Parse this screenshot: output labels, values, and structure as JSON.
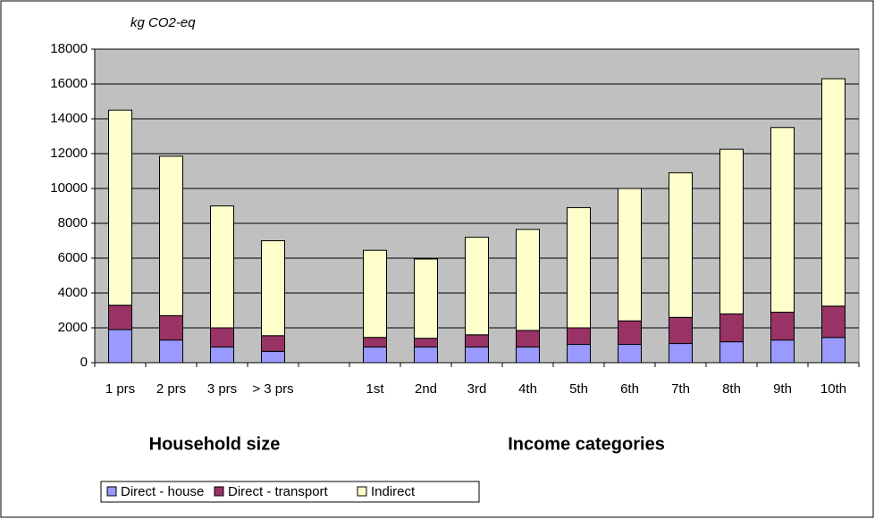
{
  "chart_data": {
    "type": "stacked-bar",
    "y_label": "kg CO2-eq",
    "annotations": [
      "Household size",
      "Income categories"
    ],
    "categories": [
      "1 prs",
      "2 prs",
      "3 prs",
      "> 3 prs",
      null,
      "1st",
      "2nd",
      "3rd",
      "4th",
      "5th",
      "6th",
      "7th",
      "8th",
      "9th",
      "10th"
    ],
    "series": [
      {
        "name": "Direct - house",
        "color": "#9999ff",
        "values": [
          1900,
          1300,
          900,
          650,
          null,
          900,
          900,
          900,
          900,
          1050,
          1050,
          1100,
          1200,
          1300,
          1450
        ]
      },
      {
        "name": "Direct - transport",
        "color": "#993366",
        "values": [
          1400,
          1400,
          1100,
          900,
          null,
          550,
          500,
          700,
          950,
          950,
          1350,
          1500,
          1600,
          1600,
          1800
        ]
      },
      {
        "name": "Indirect",
        "color": "#ffffcc",
        "values": [
          11200,
          9150,
          7000,
          5450,
          null,
          5000,
          4550,
          5600,
          5800,
          6900,
          7600,
          8300,
          9450,
          10600,
          13050
        ]
      }
    ],
    "ylim": [
      0,
      18000
    ],
    "yticks": [
      0,
      2000,
      4000,
      6000,
      8000,
      10000,
      12000,
      14000,
      16000,
      18000
    ],
    "grid": true,
    "plot_background": "#c0c0c0",
    "legend": "bottom-left"
  }
}
